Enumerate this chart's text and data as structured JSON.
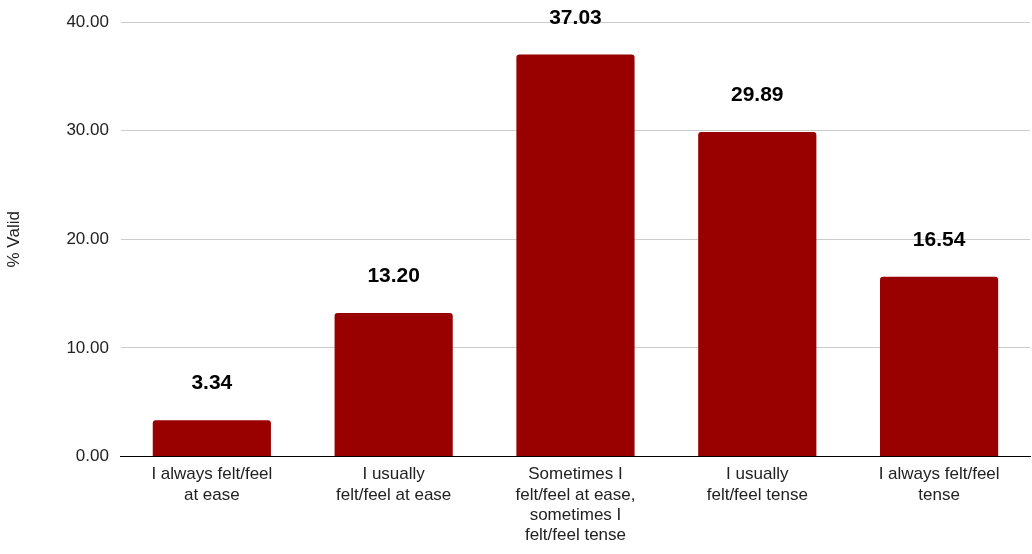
{
  "chart_data": {
    "type": "bar",
    "ylabel": "% Valid",
    "categories": [
      "I always felt/feel\nat ease",
      "I usually\nfelt/feel at ease",
      "Sometimes I\nfelt/feel at ease,\nsometimes I\nfelt/feel tense",
      "I usually\nfelt/feel tense",
      "I always felt/feel\ntense"
    ],
    "values": [
      3.34,
      13.2,
      37.03,
      29.89,
      16.54
    ],
    "value_labels": [
      "3.34",
      "13.20",
      "37.03",
      "29.89",
      "16.54"
    ],
    "color": "#990000",
    "ylim": [
      0,
      40
    ],
    "yticks": [
      {
        "value": 0,
        "label": "0.00"
      },
      {
        "value": 10,
        "label": "10.00"
      },
      {
        "value": 20,
        "label": "20.00"
      },
      {
        "value": 30,
        "label": "30.00"
      },
      {
        "value": 40,
        "label": "40.00"
      }
    ],
    "grid": "y"
  }
}
